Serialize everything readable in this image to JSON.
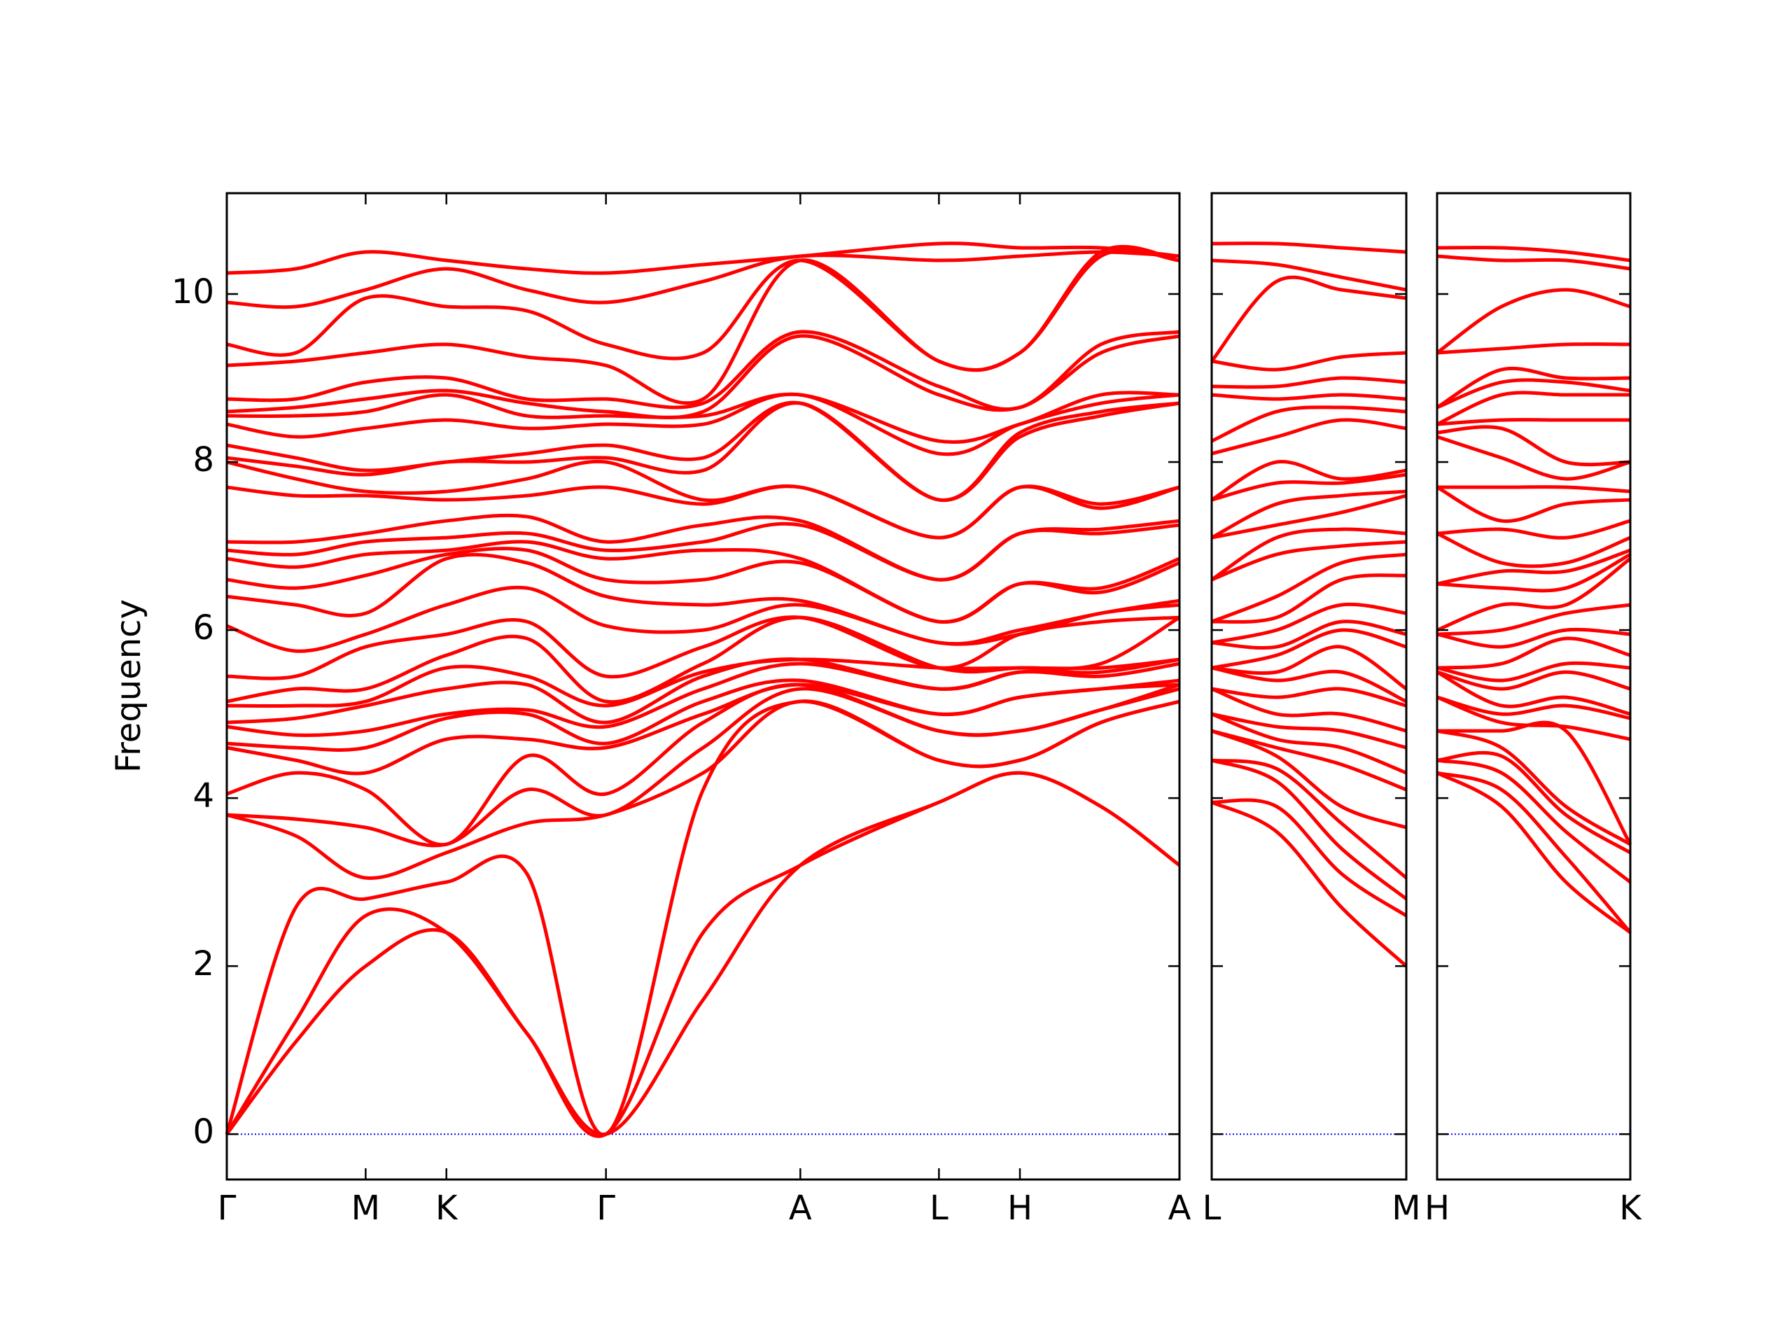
{
  "chart_data": [
    {
      "type": "line",
      "ylabel": "Frequency",
      "color": "#ff0000",
      "hline": 0,
      "hline_color": "#0000ff",
      "xlim": [
        0,
        4.0
      ],
      "ylim": [
        -0.54,
        11.2
      ],
      "yticks": [
        0,
        2,
        4,
        6,
        8,
        10
      ],
      "ytick_labels": true,
      "xticks": [
        {
          "value": 0,
          "label": "Γ"
        },
        {
          "value": 0.583,
          "label": "M"
        },
        {
          "value": 0.922,
          "label": "K"
        },
        {
          "value": 1.592,
          "label": "Γ"
        },
        {
          "value": 2.408,
          "label": "A"
        },
        {
          "value": 2.99,
          "label": "L"
        },
        {
          "value": 3.33,
          "label": "H"
        },
        {
          "value": 4.0,
          "label": "A"
        }
      ],
      "x": [
        0,
        0.29,
        0.583,
        0.922,
        1.26,
        1.592,
        2.0,
        2.408,
        2.99,
        3.33,
        3.67,
        4.0
      ],
      "points": [
        [
          0,
          0,
          0,
          3.8,
          3.8,
          4.05,
          4.6,
          4.65,
          4.85,
          4.9,
          5.1,
          5.15,
          5.45,
          6.05,
          6.4,
          6.6,
          6.85,
          6.95,
          7.05,
          7.7,
          8.0,
          8.05,
          8.2,
          8.45,
          8.55,
          8.6,
          8.75,
          9.15,
          9.4,
          9.9,
          10.25
        ],
        [
          1.1,
          1.35,
          2.7,
          3.55,
          3.75,
          4.3,
          4.45,
          4.6,
          4.75,
          4.95,
          5.1,
          5.3,
          5.45,
          5.75,
          6.3,
          6.5,
          6.75,
          6.9,
          7.05,
          7.6,
          7.8,
          7.95,
          8.05,
          8.3,
          8.55,
          8.65,
          8.75,
          9.2,
          9.3,
          9.85,
          10.3
        ],
        [
          2.0,
          2.6,
          2.8,
          3.05,
          3.65,
          4.1,
          4.3,
          4.6,
          4.8,
          5.1,
          5.15,
          5.3,
          5.8,
          5.95,
          6.2,
          6.65,
          6.9,
          7.05,
          7.15,
          7.6,
          7.65,
          7.85,
          7.9,
          8.4,
          8.6,
          8.75,
          8.95,
          9.3,
          9.95,
          10.05,
          10.5
        ],
        [
          2.4,
          2.4,
          3.0,
          3.35,
          3.45,
          3.45,
          4.7,
          4.95,
          5.0,
          5.3,
          5.55,
          5.7,
          5.95,
          6.3,
          6.85,
          6.9,
          6.95,
          7.1,
          7.3,
          7.55,
          7.65,
          8.0,
          8.0,
          8.5,
          8.8,
          8.85,
          9.0,
          9.4,
          9.85,
          10.3,
          10.4
        ],
        [
          1.2,
          1.2,
          3.1,
          3.7,
          4.1,
          4.5,
          4.7,
          5.0,
          5.05,
          5.35,
          5.45,
          5.9,
          6.1,
          6.5,
          6.8,
          6.95,
          7.05,
          7.15,
          7.35,
          7.6,
          7.8,
          8.0,
          8.1,
          8.4,
          8.55,
          8.7,
          8.75,
          9.25,
          9.8,
          10.05,
          10.3
        ],
        [
          0,
          0,
          0,
          3.8,
          3.8,
          4.05,
          4.6,
          4.65,
          4.85,
          4.9,
          5.1,
          5.15,
          5.45,
          6.05,
          6.4,
          6.6,
          6.85,
          6.95,
          7.05,
          7.7,
          8.0,
          8.05,
          8.2,
          8.45,
          8.55,
          8.6,
          8.75,
          9.15,
          9.4,
          9.9,
          10.25
        ],
        [
          1.6,
          2.4,
          4.1,
          4.3,
          4.6,
          4.9,
          5.0,
          5.15,
          5.3,
          5.45,
          5.5,
          5.6,
          5.8,
          6.0,
          6.3,
          6.6,
          6.95,
          7.05,
          7.25,
          7.5,
          7.55,
          7.9,
          8.05,
          8.45,
          8.55,
          8.6,
          8.7,
          8.75,
          9.3,
          10.15,
          10.35
        ],
        [
          3.2,
          3.2,
          5.15,
          5.15,
          5.3,
          5.35,
          5.35,
          5.4,
          5.6,
          5.65,
          5.65,
          6.15,
          6.15,
          6.3,
          6.35,
          6.8,
          6.85,
          7.25,
          7.3,
          7.7,
          7.7,
          8.7,
          8.7,
          8.8,
          8.8,
          9.5,
          9.55,
          10.4,
          10.4,
          10.45,
          10.45
        ],
        [
          3.95,
          3.95,
          4.45,
          4.45,
          4.8,
          4.8,
          5.0,
          5.0,
          5.3,
          5.3,
          5.55,
          5.55,
          5.55,
          5.85,
          5.85,
          6.1,
          6.1,
          6.6,
          6.6,
          7.1,
          7.1,
          7.55,
          7.55,
          8.1,
          8.25,
          8.8,
          8.9,
          9.2,
          9.2,
          10.4,
          10.6
        ],
        [
          4.3,
          4.3,
          4.45,
          4.45,
          4.8,
          4.8,
          5.2,
          5.2,
          5.5,
          5.5,
          5.55,
          5.55,
          5.95,
          5.95,
          6.0,
          6.55,
          6.55,
          7.15,
          7.15,
          7.7,
          7.7,
          8.3,
          8.35,
          8.45,
          8.45,
          8.65,
          8.65,
          9.3,
          9.3,
          10.45,
          10.55
        ],
        [
          3.9,
          3.9,
          4.9,
          4.9,
          5.05,
          5.05,
          5.3,
          5.3,
          5.45,
          5.5,
          5.55,
          5.6,
          6.1,
          6.2,
          6.2,
          6.45,
          6.5,
          7.15,
          7.2,
          7.45,
          7.5,
          8.55,
          8.6,
          8.7,
          8.8,
          9.3,
          9.4,
          10.45,
          10.5,
          10.5,
          10.55
        ],
        [
          3.2,
          3.2,
          5.15,
          5.15,
          5.3,
          5.35,
          5.35,
          5.4,
          5.6,
          5.65,
          5.65,
          6.15,
          6.15,
          6.3,
          6.35,
          6.8,
          6.85,
          7.25,
          7.3,
          7.7,
          7.7,
          8.7,
          8.7,
          8.8,
          8.8,
          9.5,
          9.55,
          10.4,
          10.4,
          10.45,
          10.45
        ]
      ]
    },
    {
      "type": "line",
      "color": "#ff0000",
      "hline": 0,
      "hline_color": "#0000ff",
      "xlim": [
        0,
        0.81
      ],
      "ylim": [
        -0.54,
        11.2
      ],
      "yticks": [
        0,
        2,
        4,
        6,
        8,
        10
      ],
      "ytick_labels": false,
      "xticks": [
        {
          "value": 0,
          "label": "L"
        },
        {
          "value": 0.81,
          "label": "M"
        }
      ],
      "x": [
        0,
        0.27,
        0.54,
        0.81
      ],
      "points": [
        [
          3.95,
          3.95,
          4.45,
          4.45,
          4.8,
          4.8,
          5.0,
          5.0,
          5.3,
          5.3,
          5.55,
          5.55,
          5.55,
          5.85,
          5.85,
          6.1,
          6.1,
          6.6,
          6.6,
          7.1,
          7.1,
          7.55,
          7.55,
          8.1,
          8.25,
          8.8,
          8.9,
          9.2,
          9.2,
          10.4,
          10.6
        ],
        [
          3.6,
          3.9,
          4.2,
          4.35,
          4.5,
          4.6,
          4.7,
          4.85,
          5.0,
          5.2,
          5.4,
          5.5,
          5.7,
          5.8,
          6.0,
          6.15,
          6.4,
          6.9,
          7.1,
          7.25,
          7.5,
          7.75,
          8.0,
          8.3,
          8.6,
          8.75,
          8.9,
          9.1,
          10.15,
          10.35,
          10.6
        ],
        [
          2.7,
          3.1,
          3.4,
          3.7,
          3.9,
          4.4,
          4.6,
          4.8,
          5.0,
          5.3,
          5.5,
          5.8,
          6.0,
          6.1,
          6.3,
          6.6,
          6.8,
          7.0,
          7.2,
          7.4,
          7.6,
          7.75,
          7.8,
          8.5,
          8.65,
          8.8,
          9.0,
          9.25,
          10.05,
          10.2,
          10.55
        ],
        [
          2.0,
          2.6,
          2.8,
          3.05,
          3.65,
          4.1,
          4.3,
          4.6,
          4.8,
          5.1,
          5.15,
          5.3,
          5.8,
          5.95,
          6.2,
          6.65,
          6.9,
          7.05,
          7.15,
          7.6,
          7.65,
          7.85,
          7.9,
          8.4,
          8.6,
          8.75,
          8.95,
          9.3,
          9.95,
          10.05,
          10.5
        ]
      ]
    },
    {
      "type": "line",
      "color": "#ff0000",
      "hline": 0,
      "hline_color": "#0000ff",
      "xlim": [
        0,
        0.81
      ],
      "ylim": [
        -0.54,
        11.2
      ],
      "yticks": [
        0,
        2,
        4,
        6,
        8,
        10
      ],
      "ytick_labels": false,
      "xticks": [
        {
          "value": 0,
          "label": "H"
        },
        {
          "value": 0.81,
          "label": "K"
        }
      ],
      "x": [
        0,
        0.27,
        0.54,
        0.81
      ],
      "points": [
        [
          4.3,
          4.3,
          4.45,
          4.45,
          4.8,
          4.8,
          5.2,
          5.2,
          5.5,
          5.5,
          5.55,
          5.55,
          5.95,
          5.95,
          6.0,
          6.55,
          6.55,
          7.15,
          7.15,
          7.7,
          7.7,
          8.3,
          8.35,
          8.45,
          8.45,
          8.65,
          8.65,
          9.3,
          9.3,
          10.45,
          10.55
        ],
        [
          3.9,
          4.1,
          4.3,
          4.5,
          4.6,
          4.8,
          4.9,
          5.0,
          5.1,
          5.3,
          5.4,
          5.6,
          5.8,
          6.0,
          6.3,
          6.5,
          6.7,
          6.8,
          7.2,
          7.3,
          7.7,
          8.05,
          8.4,
          8.5,
          8.8,
          8.95,
          9.1,
          9.35,
          9.85,
          10.4,
          10.55
        ],
        [
          3.0,
          3.3,
          3.6,
          3.8,
          3.9,
          4.8,
          4.85,
          5.1,
          5.2,
          5.5,
          5.6,
          5.9,
          6.0,
          6.2,
          6.3,
          6.5,
          6.7,
          6.8,
          7.1,
          7.5,
          7.7,
          7.8,
          8.0,
          8.5,
          8.8,
          8.95,
          9.0,
          9.4,
          10.05,
          10.4,
          10.5
        ],
        [
          2.4,
          2.4,
          3.0,
          3.35,
          3.45,
          3.45,
          4.7,
          4.95,
          5.0,
          5.3,
          5.55,
          5.7,
          5.95,
          6.3,
          6.85,
          6.9,
          6.95,
          7.1,
          7.3,
          7.55,
          7.65,
          8.0,
          8.0,
          8.5,
          8.8,
          8.85,
          9.0,
          9.4,
          9.85,
          10.3,
          10.4
        ]
      ]
    }
  ]
}
